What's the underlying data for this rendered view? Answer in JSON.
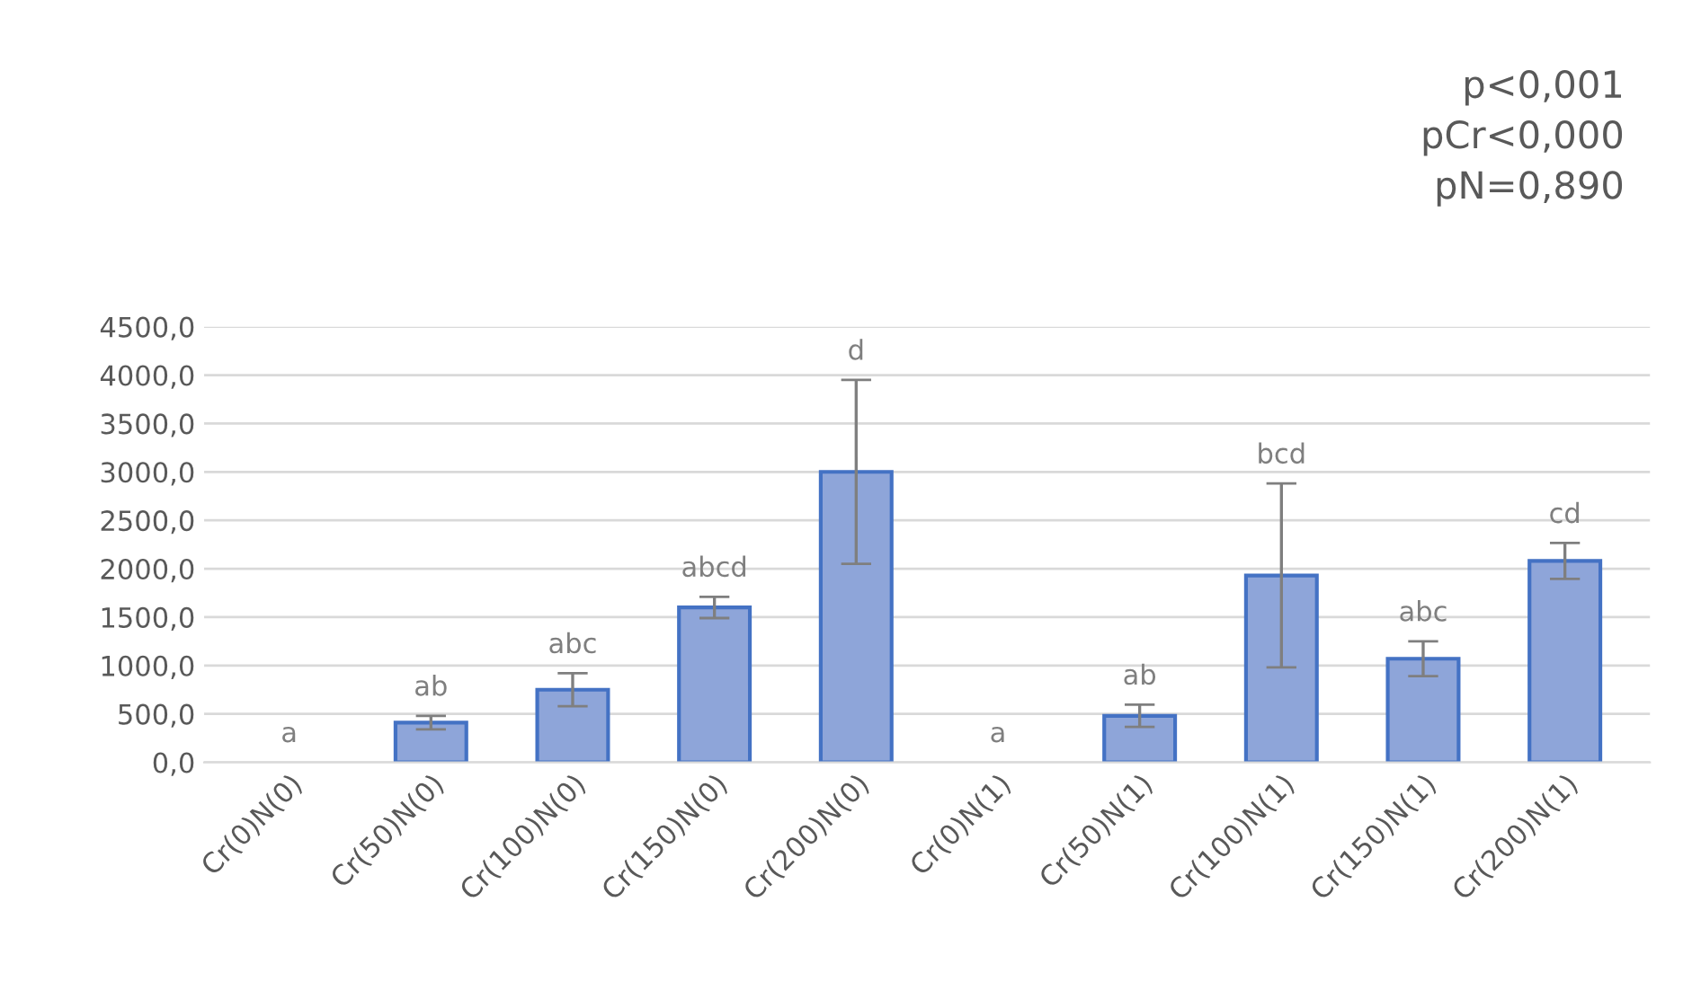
{
  "chart_data": {
    "type": "bar",
    "categories": [
      "Cr(0)N(0)",
      "Cr(50)N(0)",
      "Cr(100)N(0)",
      "Cr(150)N(0)",
      "Cr(200)N(0)",
      "Cr(0)N(1)",
      "Cr(50)N(1)",
      "Cr(100)N(1)",
      "Cr(150)N(1)",
      "Cr(200)N(1)"
    ],
    "values": [
      0,
      410,
      750,
      1600,
      3000,
      0,
      480,
      1930,
      1070,
      2080
    ],
    "errors": [
      null,
      70,
      170,
      110,
      950,
      null,
      115,
      950,
      180,
      185
    ],
    "color": "#8ea5d9",
    "ylim": [
      0,
      4500
    ],
    "yticks": [
      {
        "value": 0,
        "label": "0,0"
      },
      {
        "value": 500,
        "label": "500,0"
      },
      {
        "value": 1000,
        "label": "1000,0"
      },
      {
        "value": 1500,
        "label": "1500,0"
      },
      {
        "value": 2000,
        "label": "2000,0"
      },
      {
        "value": 2500,
        "label": "2500,0"
      },
      {
        "value": 3000,
        "label": "3000,0"
      },
      {
        "value": 3500,
        "label": "3500,0"
      },
      {
        "value": 4000,
        "label": "4000,0"
      },
      {
        "value": 4500,
        "label": "4500,0"
      }
    ],
    "grid": "y",
    "annotations": [
      "a",
      "ab",
      "abc",
      "abcd",
      "d",
      "a",
      "ab",
      "bcd",
      "abc",
      "cd",
      "p<0,001\npCr<0,000\npN=0,890"
    ]
  }
}
